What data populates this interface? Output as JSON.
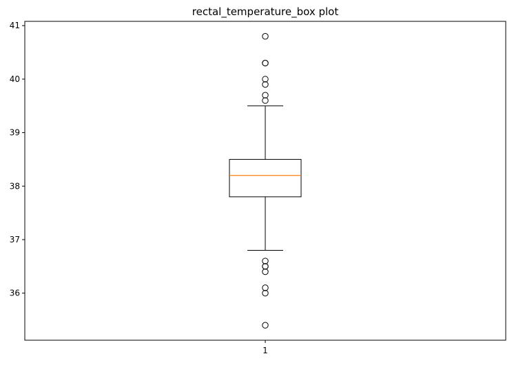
{
  "chart_data": {
    "type": "box",
    "title": "rectal_temperature_box plot",
    "xlabel": "",
    "ylabel": "",
    "categories": [
      "1"
    ],
    "ylim": [
      35.12,
      41.08
    ],
    "yticks": [
      36,
      37,
      38,
      39,
      40,
      41
    ],
    "grid": false,
    "legend": "none",
    "boxes": [
      {
        "category": "1",
        "whisker_low": 36.8,
        "q1": 37.8,
        "median": 38.2,
        "q3": 38.5,
        "whisker_high": 39.5,
        "outliers": [
          40.8,
          40.3,
          40.3,
          40.0,
          39.9,
          39.7,
          39.6,
          36.6,
          36.5,
          36.5,
          36.4,
          36.1,
          36.0,
          35.4
        ]
      }
    ],
    "colors": {
      "box": "#000000",
      "median": "#ff7f0e",
      "outlier": "#000000"
    }
  }
}
